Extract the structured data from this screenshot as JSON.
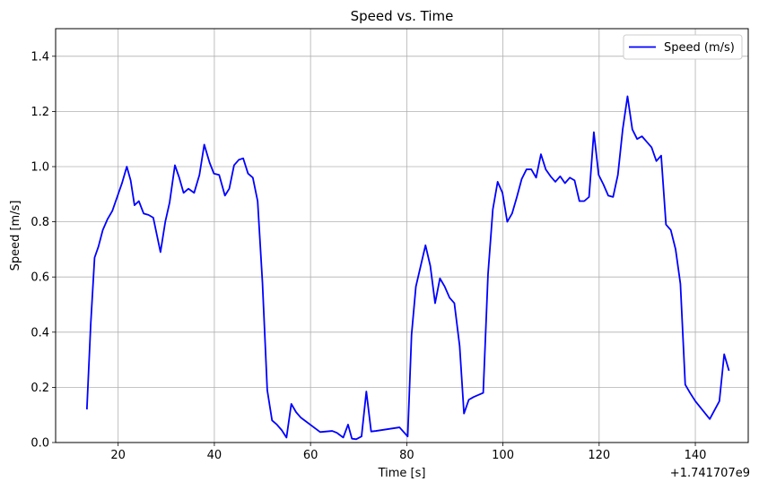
{
  "chart_data": {
    "type": "line",
    "title": "Speed vs. Time",
    "xlabel": "Time [s]",
    "ylabel": "Speed [m/s]",
    "x_offset_label": "+1.741707e9",
    "xlim": [
      7,
      151
    ],
    "ylim": [
      0,
      1.5
    ],
    "xticks": [
      20,
      40,
      60,
      80,
      100,
      120,
      140
    ],
    "yticks": [
      0.0,
      0.2,
      0.4,
      0.6,
      0.8,
      1.0,
      1.2,
      1.4
    ],
    "ytick_labels": [
      "0.0",
      "0.2",
      "0.4",
      "0.6",
      "0.8",
      "1.0",
      "1.2",
      "1.4"
    ],
    "grid": true,
    "legend_position": "top-right",
    "series": [
      {
        "name": "Speed (m/s)",
        "color": "#0000ff",
        "x": [
          13.5,
          14.3,
          15.1,
          15.9,
          16.8,
          17.8,
          18.8,
          19.8,
          20.8,
          21.8,
          22.6,
          23.4,
          24.3,
          25.3,
          26.3,
          27.3,
          28.8,
          29.8,
          30.7,
          31.8,
          32.7,
          33.6,
          34.6,
          35.8,
          36.9,
          37.9,
          39.0,
          39.9,
          41.0,
          42.2,
          43.1,
          44.1,
          45.1,
          46.0,
          47.0,
          48.0,
          49.0,
          50.0,
          51.0,
          52.0,
          53.0,
          54.0,
          55.0,
          56.0,
          57.0,
          58.0,
          62.0,
          64.5,
          65.5,
          66.8,
          67.8,
          68.6,
          69.5,
          70.6,
          71.6,
          72.6,
          73.6,
          78.5,
          80.2,
          81.0,
          81.9,
          82.9,
          83.9,
          84.9,
          85.9,
          86.9,
          87.9,
          88.9,
          89.9,
          91.0,
          91.9,
          92.9,
          93.9,
          95.9,
          96.9,
          97.9,
          98.9,
          99.9,
          100.9,
          101.9,
          102.9,
          103.9,
          104.9,
          105.9,
          106.9,
          107.9,
          108.9,
          109.9,
          110.9,
          111.9,
          112.9,
          113.9,
          114.9,
          115.9,
          116.9,
          117.9,
          118.9,
          119.9,
          120.9,
          121.9,
          122.9,
          123.9,
          124.9,
          125.9,
          126.9,
          127.9,
          128.9,
          129.9,
          130.9,
          131.9,
          132.9,
          133.9,
          134.9,
          135.9,
          136.9,
          137.9,
          138.9,
          140.0,
          143.0,
          145.0,
          146.0,
          147.0
        ],
        "y": [
          0.12,
          0.43,
          0.67,
          0.71,
          0.77,
          0.81,
          0.84,
          0.89,
          0.94,
          1.0,
          0.95,
          0.86,
          0.875,
          0.83,
          0.825,
          0.815,
          0.69,
          0.8,
          0.87,
          1.005,
          0.96,
          0.905,
          0.92,
          0.905,
          0.97,
          1.08,
          1.015,
          0.975,
          0.97,
          0.895,
          0.92,
          1.005,
          1.025,
          1.03,
          0.975,
          0.96,
          0.875,
          0.58,
          0.19,
          0.08,
          0.065,
          0.045,
          0.018,
          0.14,
          0.11,
          0.09,
          0.038,
          0.042,
          0.035,
          0.018,
          0.065,
          0.014,
          0.012,
          0.022,
          0.185,
          0.04,
          0.042,
          0.055,
          0.022,
          0.39,
          0.565,
          0.64,
          0.715,
          0.64,
          0.505,
          0.595,
          0.565,
          0.525,
          0.505,
          0.35,
          0.105,
          0.155,
          0.165,
          0.18,
          0.61,
          0.845,
          0.945,
          0.905,
          0.8,
          0.83,
          0.89,
          0.955,
          0.99,
          0.99,
          0.96,
          1.045,
          0.99,
          0.965,
          0.945,
          0.965,
          0.94,
          0.96,
          0.95,
          0.875,
          0.875,
          0.89,
          1.125,
          0.97,
          0.935,
          0.895,
          0.89,
          0.97,
          1.135,
          1.255,
          1.135,
          1.1,
          1.11,
          1.09,
          1.07,
          1.02,
          1.04,
          0.79,
          0.77,
          0.7,
          0.575,
          0.21,
          0.18,
          0.15,
          0.085,
          0.15,
          0.32,
          0.26
        ]
      }
    ]
  }
}
